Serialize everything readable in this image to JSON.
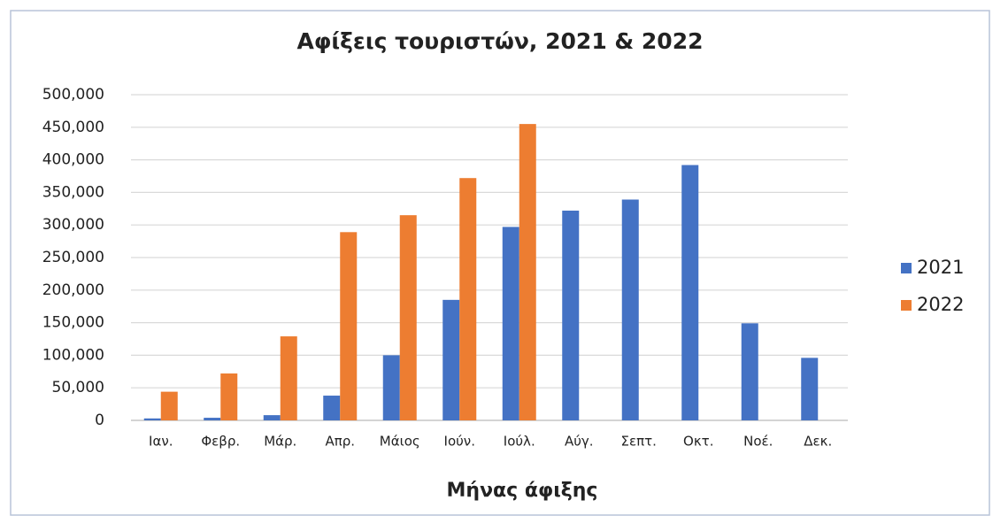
{
  "chart_data": {
    "type": "bar",
    "title": "Αφίξεις τουριστών, 2021 & 2022",
    "x_label": "Μήνας άφιξης",
    "categories": [
      "Ιαν.",
      "Φεβρ.",
      "Μάρ.",
      "Απρ.",
      "Μάιος",
      "Ιούν.",
      "Ιούλ.",
      "Αύγ.",
      "Σεπτ.",
      "Οκτ.",
      "Νοέ.",
      "Δεκ."
    ],
    "series": [
      {
        "name": "2021",
        "color": "#4472c4",
        "values": [
          3000,
          4000,
          8000,
          38000,
          100000,
          185000,
          297000,
          322000,
          339000,
          392000,
          149000,
          96000
        ]
      },
      {
        "name": "2022",
        "color": "#ed7d31",
        "values": [
          44000,
          72000,
          129000,
          289000,
          315000,
          372000,
          455000,
          null,
          null,
          null,
          null,
          null
        ]
      }
    ],
    "ylim": [
      0,
      500000
    ],
    "yticks": [
      0,
      {
        "value": 50000,
        "label": "50,000"
      },
      {
        "value": 100000,
        "label": "100,000"
      },
      {
        "value": 150000,
        "label": "150,000"
      },
      {
        "value": 200000,
        "label": "200,000"
      },
      {
        "value": 250000,
        "label": "250,000"
      },
      {
        "value": 300000,
        "label": "300,000"
      },
      {
        "value": 350000,
        "label": "350,000"
      },
      {
        "value": 400000,
        "label": "400,000"
      },
      {
        "value": 450000,
        "label": "450,000"
      },
      {
        "value": 500000,
        "label": "500,000"
      }
    ],
    "grid": true,
    "legend": "right"
  }
}
